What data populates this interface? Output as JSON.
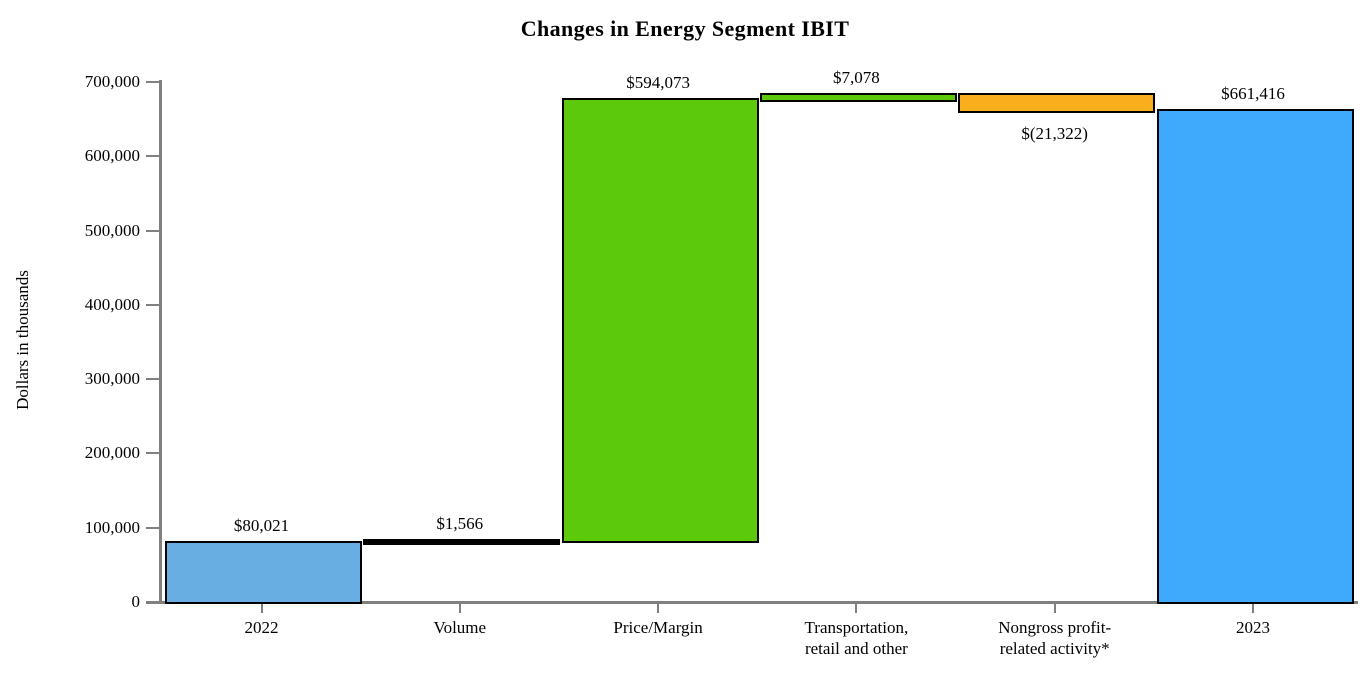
{
  "chart_data": {
    "type": "bar",
    "subtype": "waterfall",
    "title": "Changes in Energy Segment IBIT",
    "xlabel": "",
    "ylabel": "Dollars in thousands",
    "ylim": [
      0,
      700000
    ],
    "ytick_step": 100000,
    "y_ticks": [
      "0",
      "100,000",
      "200,000",
      "300,000",
      "400,000",
      "500,000",
      "600,000",
      "700,000"
    ],
    "grid": "off",
    "legend": "none",
    "categories": [
      "2022",
      "Volume",
      "Price/Margin",
      "Transportation, retail and other",
      "Nongross profit-related activity*",
      "2023"
    ],
    "bars": [
      {
        "category_lines": [
          "2022"
        ],
        "kind": "total",
        "value": 80021,
        "label": "$80,021",
        "label_position": "above",
        "color": "#68AEE2"
      },
      {
        "category_lines": [
          "Volume"
        ],
        "kind": "delta",
        "value": 1566,
        "label": "$1,566",
        "label_position": "above",
        "color": "#000000"
      },
      {
        "category_lines": [
          "Price/Margin"
        ],
        "kind": "delta",
        "value": 594073,
        "label": "$594,073",
        "label_position": "above",
        "color": "#5CC90A"
      },
      {
        "category_lines": [
          "Transportation,",
          "retail and other"
        ],
        "kind": "delta",
        "value": 7078,
        "label": "$7,078",
        "label_position": "above",
        "color": "#5CC90A"
      },
      {
        "category_lines": [
          "Nongross profit-",
          "related activity*"
        ],
        "kind": "delta",
        "value": -21322,
        "label": "$(21,322)",
        "label_position": "below",
        "color": "#F9AE1B"
      },
      {
        "category_lines": [
          "2023"
        ],
        "kind": "total",
        "value": 661416,
        "label": "$661,416",
        "label_position": "above",
        "color": "#3FA9FB"
      }
    ],
    "colors": {
      "start_total_bar": "#68AEE2",
      "end_total_bar": "#3FA9FB",
      "increase": "#5CC90A",
      "decrease": "#F9AE1B",
      "bar_border": "#000000",
      "axis": "#808080",
      "text": "#000000"
    }
  }
}
